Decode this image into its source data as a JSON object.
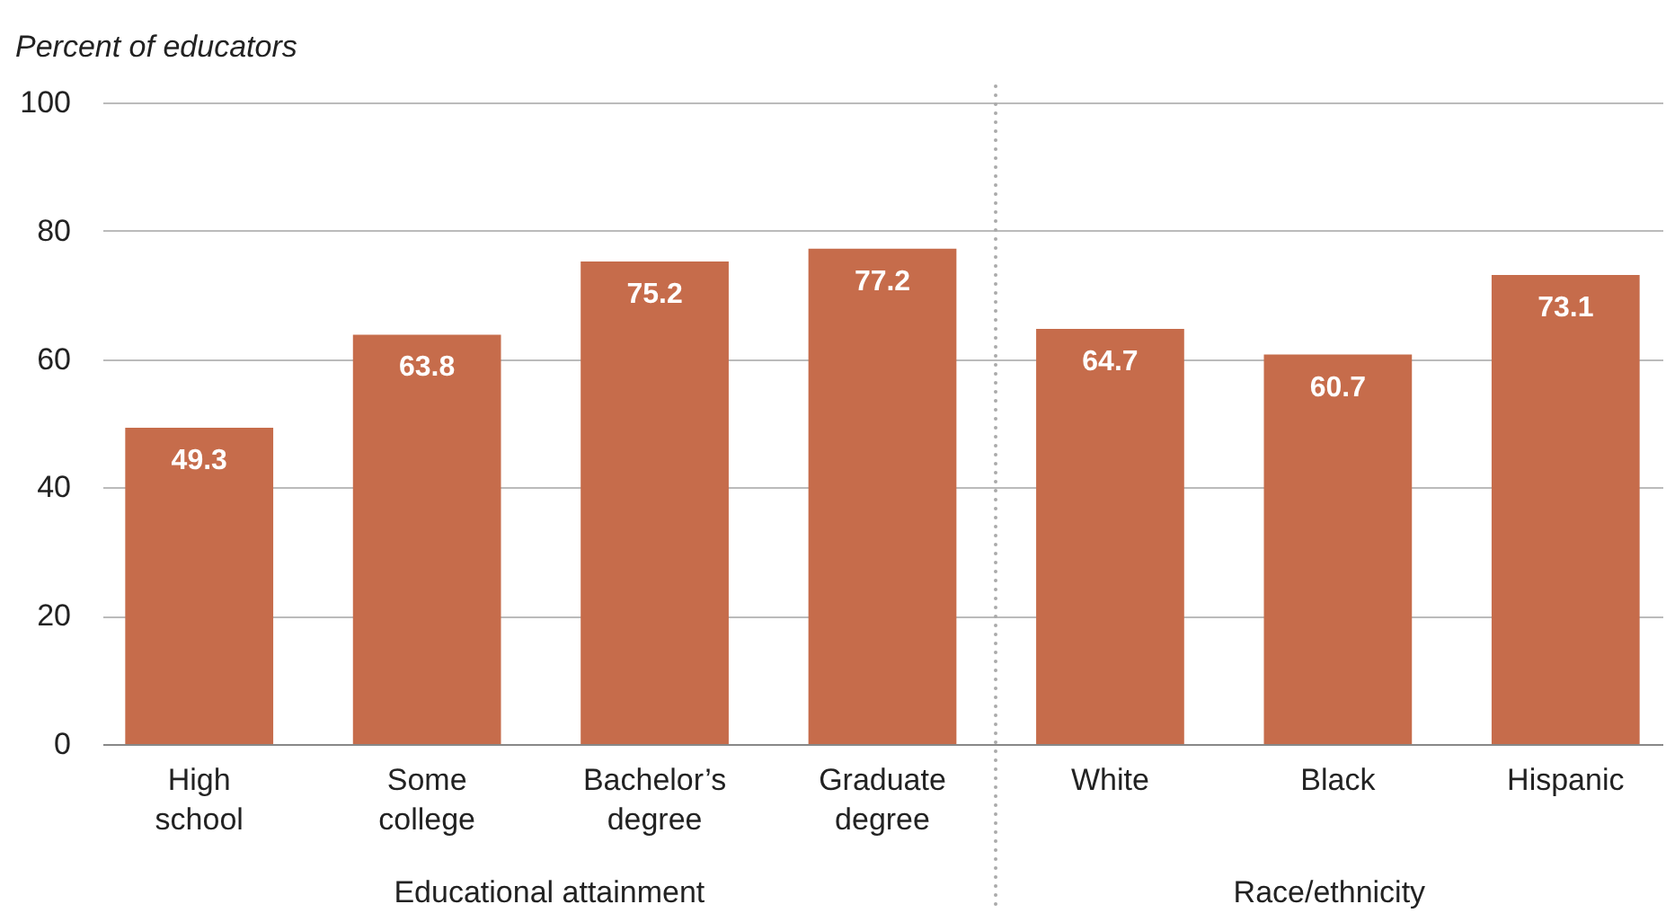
{
  "chart_data": {
    "type": "bar",
    "ylabel": "Percent of educators",
    "categories": [
      "High school",
      "Some college",
      "Bachelor’s degree",
      "Graduate degree",
      "White",
      "Black",
      "Hispanic"
    ],
    "values": [
      49.3,
      63.8,
      75.2,
      77.2,
      64.7,
      60.7,
      73.1
    ],
    "color": "#c66c4b",
    "data_labels": true,
    "ylim": [
      0,
      100
    ],
    "yticks": [
      0,
      20,
      40,
      60,
      80,
      100
    ],
    "grid": "y",
    "annotations": [
      "Educational attainment",
      "Race/ethnicity"
    ]
  }
}
